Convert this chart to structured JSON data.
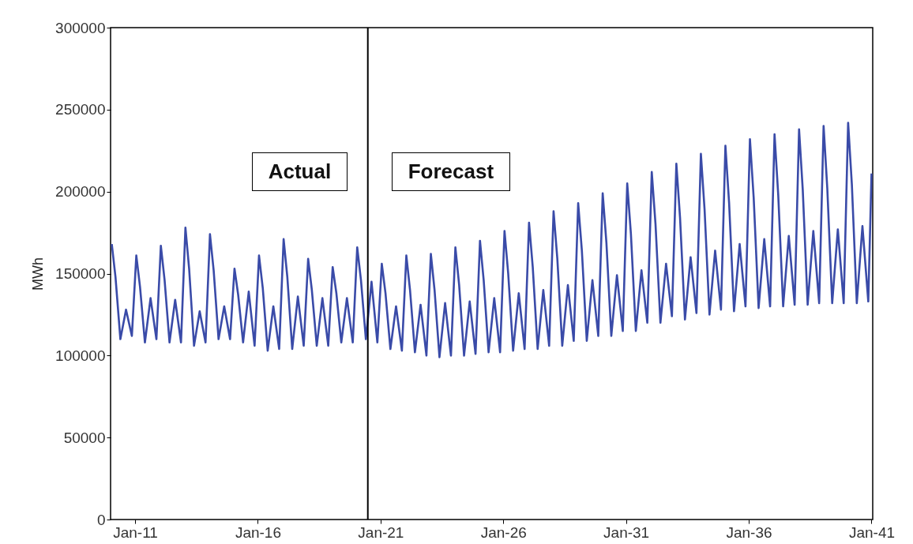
{
  "chart_data": {
    "type": "line",
    "ylabel": "MWh",
    "ylim": [
      0,
      300000
    ],
    "yticks": [
      0,
      50000,
      100000,
      150000,
      200000,
      250000,
      300000
    ],
    "xlim": [
      "2010-01-01",
      "2041-01-19"
    ],
    "xticks": [
      {
        "value": "2011-01",
        "label": "Jan-11"
      },
      {
        "value": "2016-01",
        "label": "Jan-16"
      },
      {
        "value": "2021-01",
        "label": "Jan-21"
      },
      {
        "value": "2026-01",
        "label": "Jan-26"
      },
      {
        "value": "2031-01",
        "label": "Jan-31"
      },
      {
        "value": "2036-01",
        "label": "Jan-36"
      },
      {
        "value": "2041-01",
        "label": "Jan-41"
      }
    ],
    "grid": false,
    "legend": false,
    "marker": "none",
    "line_style": "solid",
    "ref_lines": [
      {
        "axis": "x",
        "value": "2020-06-25",
        "color": "#000000"
      }
    ],
    "annotations": [
      "Actual",
      "Forecast"
    ],
    "series": [
      {
        "color": "#3a4ba8",
        "x": [
          "2010-01-19",
          "2010-03-15",
          "2010-05-27",
          "2010-08-19",
          "2010-11-14",
          "2011-01-19",
          "2011-03-15",
          "2011-05-27",
          "2011-08-19",
          "2011-11-14",
          "2012-01-19",
          "2012-03-15",
          "2012-05-27",
          "2012-08-19",
          "2012-11-14",
          "2013-01-19",
          "2013-03-15",
          "2013-05-27",
          "2013-08-19",
          "2013-11-14",
          "2014-01-19",
          "2014-03-15",
          "2014-05-27",
          "2014-08-19",
          "2014-11-14",
          "2015-01-19",
          "2015-03-15",
          "2015-05-27",
          "2015-08-19",
          "2015-11-14",
          "2016-01-19",
          "2016-03-15",
          "2016-05-27",
          "2016-08-19",
          "2016-11-14",
          "2017-01-19",
          "2017-03-15",
          "2017-05-27",
          "2017-08-19",
          "2017-11-14",
          "2018-01-19",
          "2018-03-15",
          "2018-05-27",
          "2018-08-19",
          "2018-11-14",
          "2019-01-19",
          "2019-03-15",
          "2019-05-27",
          "2019-08-19",
          "2019-11-14",
          "2020-01-19",
          "2020-03-15",
          "2020-05-27",
          "2020-08-19",
          "2020-11-14",
          "2021-01-19",
          "2021-03-15",
          "2021-05-27",
          "2021-08-19",
          "2021-11-14",
          "2022-01-19",
          "2022-03-15",
          "2022-05-27",
          "2022-08-19",
          "2022-11-14",
          "2023-01-19",
          "2023-03-15",
          "2023-05-27",
          "2023-08-19",
          "2023-11-14",
          "2024-01-19",
          "2024-03-15",
          "2024-05-27",
          "2024-08-19",
          "2024-11-14",
          "2025-01-19",
          "2025-03-15",
          "2025-05-27",
          "2025-08-19",
          "2025-11-14",
          "2026-01-19",
          "2026-03-15",
          "2026-05-27",
          "2026-08-19",
          "2026-11-14",
          "2027-01-19",
          "2027-03-15",
          "2027-05-27",
          "2027-08-19",
          "2027-11-14",
          "2028-01-19",
          "2028-03-15",
          "2028-05-27",
          "2028-08-19",
          "2028-11-14",
          "2029-01-19",
          "2029-03-15",
          "2029-05-27",
          "2029-08-19",
          "2029-11-14",
          "2030-01-19",
          "2030-03-15",
          "2030-05-27",
          "2030-08-19",
          "2030-11-14",
          "2031-01-19",
          "2031-03-15",
          "2031-05-27",
          "2031-08-19",
          "2031-11-14",
          "2032-01-19",
          "2032-03-15",
          "2032-05-27",
          "2032-08-19",
          "2032-11-14",
          "2033-01-19",
          "2033-03-15",
          "2033-05-27",
          "2033-08-19",
          "2033-11-14",
          "2034-01-19",
          "2034-03-15",
          "2034-05-27",
          "2034-08-19",
          "2034-11-14",
          "2035-01-19",
          "2035-03-15",
          "2035-05-27",
          "2035-08-19",
          "2035-11-14",
          "2036-01-19",
          "2036-03-15",
          "2036-05-27",
          "2036-08-19",
          "2036-11-14",
          "2037-01-19",
          "2037-03-15",
          "2037-05-27",
          "2037-08-19",
          "2037-11-14",
          "2038-01-19",
          "2038-03-15",
          "2038-05-27",
          "2038-08-19",
          "2038-11-14",
          "2039-01-19",
          "2039-03-15",
          "2039-05-27",
          "2039-08-19",
          "2039-11-14",
          "2040-01-19",
          "2040-03-15",
          "2040-05-27",
          "2040-08-19",
          "2040-11-14",
          "2041-01-01"
        ],
        "values": [
          168000,
          148000,
          110000,
          128000,
          112000,
          161000,
          142000,
          108000,
          135000,
          110000,
          167000,
          146000,
          108000,
          134000,
          108000,
          178000,
          153000,
          106000,
          127000,
          108000,
          174000,
          152000,
          110000,
          130000,
          110000,
          153000,
          137000,
          108000,
          139000,
          106000,
          161000,
          141000,
          103000,
          130000,
          104000,
          171000,
          148000,
          104000,
          136000,
          106000,
          159000,
          140000,
          106000,
          135000,
          106000,
          154000,
          138000,
          108000,
          135000,
          108000,
          166000,
          146000,
          110000,
          145000,
          108000,
          156000,
          138000,
          104000,
          130000,
          103000,
          161000,
          140000,
          102000,
          131000,
          100000,
          162000,
          140000,
          99000,
          132000,
          100000,
          166000,
          143000,
          100000,
          133000,
          101000,
          170000,
          146000,
          102000,
          135000,
          102000,
          176000,
          150000,
          103000,
          138000,
          104000,
          181000,
          154000,
          104000,
          140000,
          106000,
          188000,
          159000,
          106000,
          143000,
          109000,
          193000,
          164000,
          109000,
          146000,
          112000,
          199000,
          169000,
          112000,
          149000,
          115000,
          205000,
          174000,
          115000,
          152000,
          120000,
          212000,
          180000,
          120000,
          156000,
          124000,
          217000,
          184000,
          122000,
          160000,
          126000,
          223000,
          189000,
          125000,
          164000,
          128000,
          228000,
          193000,
          127000,
          168000,
          130000,
          232000,
          196000,
          129000,
          171000,
          130000,
          235000,
          198000,
          130000,
          173000,
          131000,
          238000,
          201000,
          131000,
          176000,
          132000,
          240000,
          202000,
          132000,
          177000,
          132000,
          242000,
          204000,
          132000,
          179000,
          133000,
          211000
        ]
      }
    ]
  }
}
